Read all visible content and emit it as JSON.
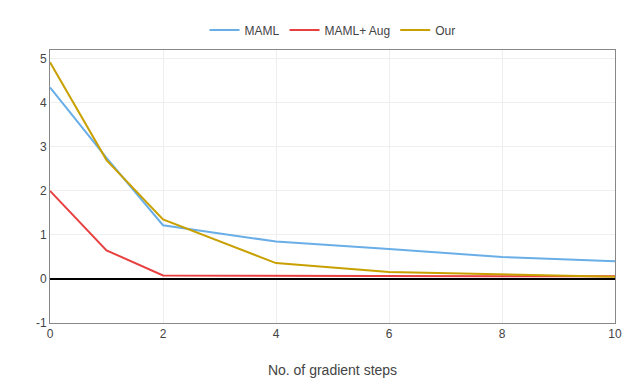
{
  "chart_data": {
    "type": "line",
    "xlabel": "No. of gradient steps",
    "x": [
      0,
      1,
      2,
      4,
      6,
      8,
      10
    ],
    "series": [
      {
        "name": "MAML",
        "color": "#6aaee8",
        "values": [
          4.35,
          2.75,
          1.22,
          0.85,
          0.68,
          0.5,
          0.4
        ]
      },
      {
        "name": "MAML+ Aug",
        "color": "#e84040",
        "values": [
          2.0,
          0.65,
          0.08,
          0.07,
          0.06,
          0.06,
          0.06
        ]
      },
      {
        "name": "Our",
        "color": "#c8a000",
        "values": [
          4.92,
          2.7,
          1.35,
          0.36,
          0.16,
          0.1,
          0.05
        ]
      }
    ],
    "xlim": [
      0,
      10
    ],
    "ylim": [
      -1,
      5.2
    ],
    "xticks": [
      0,
      2,
      4,
      6,
      8,
      10
    ],
    "yticks": [
      -1,
      0,
      1,
      2,
      3,
      4,
      5
    ],
    "grid": true,
    "legend": "top"
  }
}
